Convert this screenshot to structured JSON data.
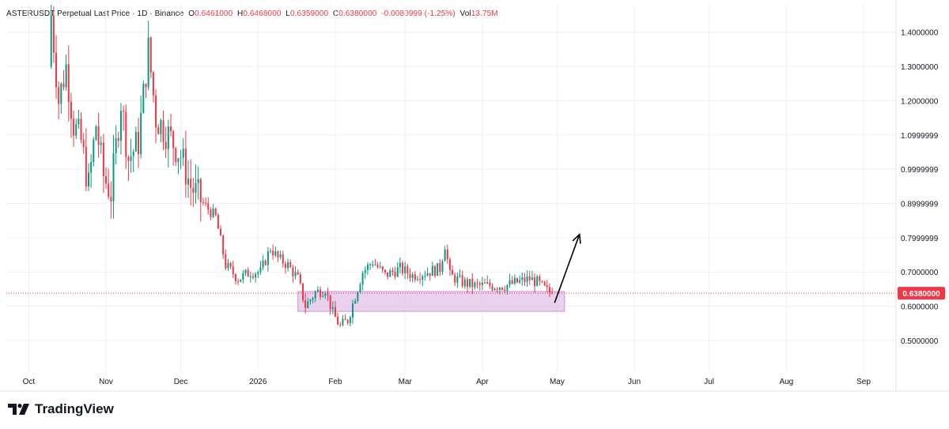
{
  "header": {
    "symbol": "ASTERUSDT Perpetual Last Price",
    "sep1": " · ",
    "timeframe": "1D",
    "sep2": " · ",
    "exchange": "Binance",
    "o_label": "O",
    "o_value": "0.6461000",
    "h_label": "H",
    "h_value": "0.6468000",
    "l_label": "L",
    "l_value": "0.6359000",
    "c_label": "C",
    "c_value": "0.6380000",
    "change": "-0.0080999 (-1.25%)",
    "vol_label": "Vol",
    "vol_value": "13.75M"
  },
  "brand": {
    "name": "TradingView",
    "icon": "tradingview-logo-icon"
  },
  "colors": {
    "up": "#089981",
    "down": "#f23645",
    "grid": "#eef0f3",
    "zone": "#e1bee7",
    "zone_border": "#ce93d8",
    "last_price_tag": "#f23645",
    "arrow": "#000000"
  },
  "chart_data": {
    "type": "candlestick",
    "title": "ASTERUSDT Perpetual Last Price · 1D · Binance",
    "y_axis": {
      "position": "right",
      "range": [
        0.41,
        1.48
      ],
      "tick_labels": [
        "1.4000000",
        "1.3000000",
        "1.2000000",
        "1.0999999",
        "0.9999999",
        "0.8999999",
        "0.7999999",
        "0.7000000",
        "0.6000000",
        "0.5000000"
      ],
      "tick_values": [
        1.4,
        1.3,
        1.2,
        1.1,
        1.0,
        0.9,
        0.8,
        0.7,
        0.6,
        0.5
      ]
    },
    "x_axis": {
      "tick_labels": [
        "Oct",
        "Nov",
        "Dec",
        "2026",
        "Feb",
        "Mar",
        "Apr",
        "May",
        "Jun",
        "Jul",
        "Aug",
        "Sep"
      ],
      "tick_dates": [
        "2025-10-01",
        "2025-11-01",
        "2025-12-01",
        "2026-01-01",
        "2026-02-01",
        "2026-03-01",
        "2026-04-01",
        "2026-05-01",
        "2026-06-01",
        "2026-07-01",
        "2026-08-01",
        "2026-09-01"
      ]
    },
    "grid": true,
    "last_price": {
      "value": 0.638,
      "label": "0.6380000"
    },
    "support_zone": {
      "from_date": "2026-01-17",
      "to_date": "2026-05-04",
      "low": 0.585,
      "high": 0.643
    },
    "projection_arrow": {
      "from_date": "2026-04-30",
      "from_value": 0.61,
      "to_date": "2026-05-10",
      "to_value": 0.81
    },
    "candle_keypoints": [
      [
        "2025-10-10",
        1.45
      ],
      [
        "2025-10-13",
        1.2
      ],
      [
        "2025-10-16",
        1.3
      ],
      [
        "2025-10-19",
        1.13
      ],
      [
        "2025-10-22",
        1.08
      ],
      [
        "2025-10-25",
        0.95
      ],
      [
        "2025-10-28",
        1.13
      ],
      [
        "2025-10-31",
        0.98
      ],
      [
        "2025-11-03",
        0.93
      ],
      [
        "2025-11-07",
        1.2
      ],
      [
        "2025-11-10",
        1.03
      ],
      [
        "2025-11-14",
        1.08
      ],
      [
        "2025-11-18",
        1.35
      ],
      [
        "2025-11-21",
        1.15
      ],
      [
        "2025-11-26",
        1.1
      ],
      [
        "2025-12-01",
        1.04
      ],
      [
        "2025-12-05",
        0.95
      ],
      [
        "2025-12-10",
        0.9
      ],
      [
        "2025-12-15",
        0.86
      ],
      [
        "2025-12-19",
        0.72
      ],
      [
        "2025-12-24",
        0.68
      ],
      [
        "2025-12-29",
        0.7
      ],
      [
        "2026-01-02",
        0.7
      ],
      [
        "2026-01-06",
        0.77
      ],
      [
        "2026-01-09",
        0.74
      ],
      [
        "2026-01-13",
        0.72
      ],
      [
        "2026-01-17",
        0.68
      ],
      [
        "2026-01-20",
        0.6
      ],
      [
        "2026-01-24",
        0.64
      ],
      [
        "2026-01-28",
        0.65
      ],
      [
        "2026-01-31",
        0.58
      ],
      [
        "2026-02-03",
        0.54
      ],
      [
        "2026-02-06",
        0.56
      ],
      [
        "2026-02-09",
        0.63
      ],
      [
        "2026-02-12",
        0.7
      ],
      [
        "2026-02-16",
        0.73
      ],
      [
        "2026-02-21",
        0.69
      ],
      [
        "2026-02-27",
        0.71
      ],
      [
        "2026-03-04",
        0.69
      ],
      [
        "2026-03-10",
        0.7
      ],
      [
        "2026-03-15",
        0.71
      ],
      [
        "2026-03-17",
        0.78
      ],
      [
        "2026-03-19",
        0.69
      ],
      [
        "2026-03-24",
        0.67
      ],
      [
        "2026-03-29",
        0.66
      ],
      [
        "2026-04-04",
        0.66
      ],
      [
        "2026-04-10",
        0.66
      ],
      [
        "2026-04-15",
        0.67
      ],
      [
        "2026-04-20",
        0.68
      ],
      [
        "2026-04-23",
        0.67
      ],
      [
        "2026-04-27",
        0.644
      ],
      [
        "2026-04-29",
        0.638
      ]
    ]
  }
}
